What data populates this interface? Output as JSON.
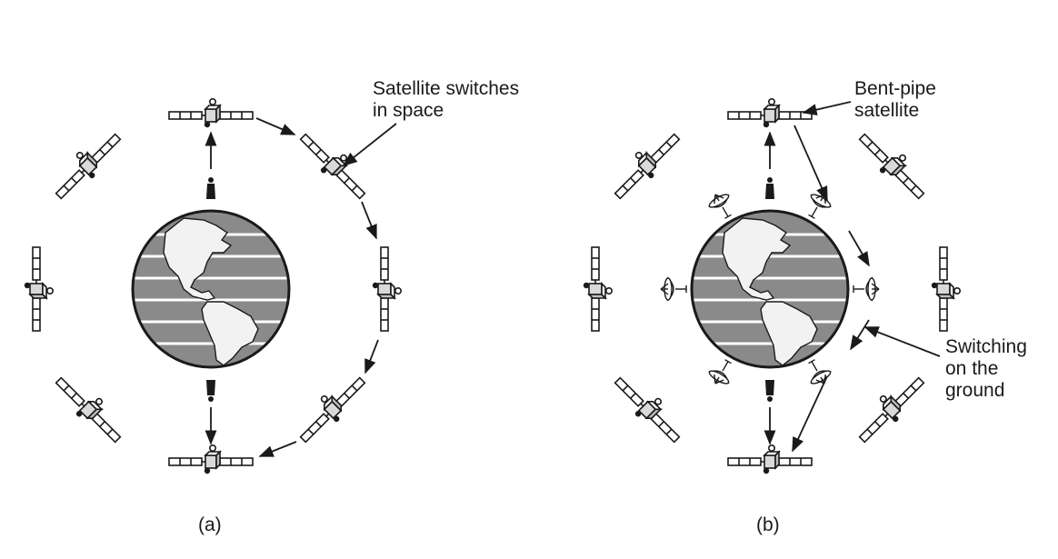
{
  "panel_a": {
    "caption": "(a)",
    "annotation": "Satellite switches\nin space"
  },
  "panel_b": {
    "caption": "(b)",
    "annotation_top": "Bent-pipe\nsatellite",
    "annotation_right": "Switching\non the\nground"
  },
  "colors": {
    "ink": "#1a1a1a",
    "globe_gray": "#8a8a8a",
    "land_white": "#f2f2f2",
    "band_white": "#ffffff"
  },
  "icons": {
    "satellite": "satellite-icon",
    "dish": "satellite-dish-icon",
    "globe": "earth-globe-icon",
    "person": "person-icon"
  }
}
